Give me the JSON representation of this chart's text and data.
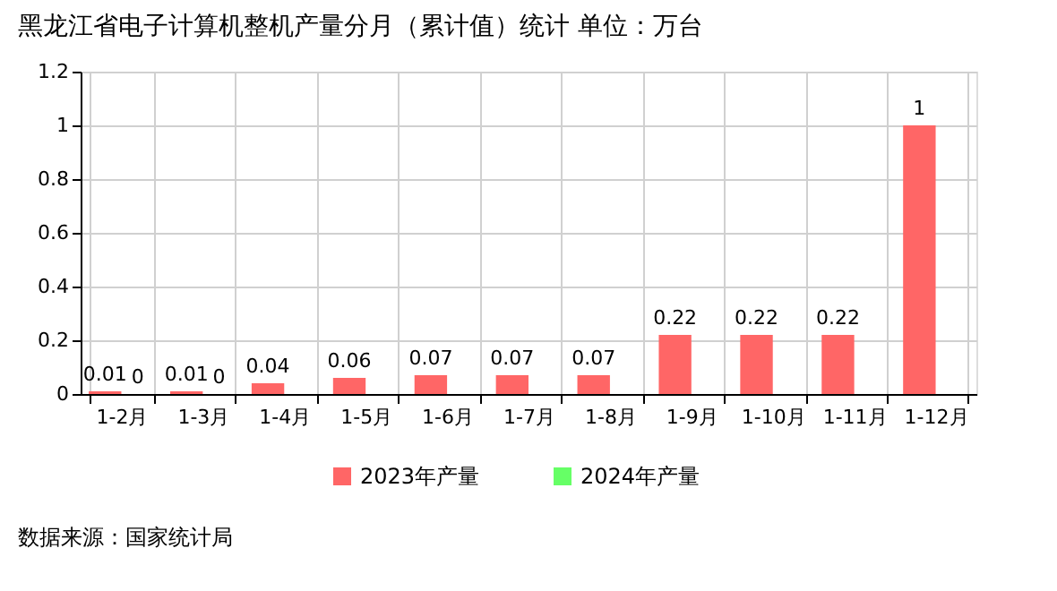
{
  "chart_data": {
    "type": "bar",
    "title": "黑龙江省电子计算机整机产量分月（累计值）统计 单位：万台",
    "categories": [
      "1-2月",
      "1-3月",
      "1-4月",
      "1-5月",
      "1-6月",
      "1-7月",
      "1-8月",
      "1-9月",
      "1-10月",
      "1-11月",
      "1-12月"
    ],
    "series": [
      {
        "name": "2023年产量",
        "color": "#ff6666",
        "values": [
          0.01,
          0.01,
          0.04,
          0.06,
          0.07,
          0.07,
          0.07,
          0.22,
          0.22,
          0.22,
          1
        ]
      },
      {
        "name": "2024年产量",
        "color": "#66ff66",
        "values": [
          0,
          0,
          null,
          null,
          null,
          null,
          null,
          null,
          null,
          null,
          null
        ]
      }
    ],
    "ylim": [
      0,
      1.2
    ],
    "yticks": [
      0,
      0.2,
      0.4,
      0.6,
      0.8,
      1,
      1.2
    ],
    "grid": true,
    "legend": "bottom",
    "data_labels": true,
    "annotations": [
      "数据来源：国家统计局"
    ]
  }
}
